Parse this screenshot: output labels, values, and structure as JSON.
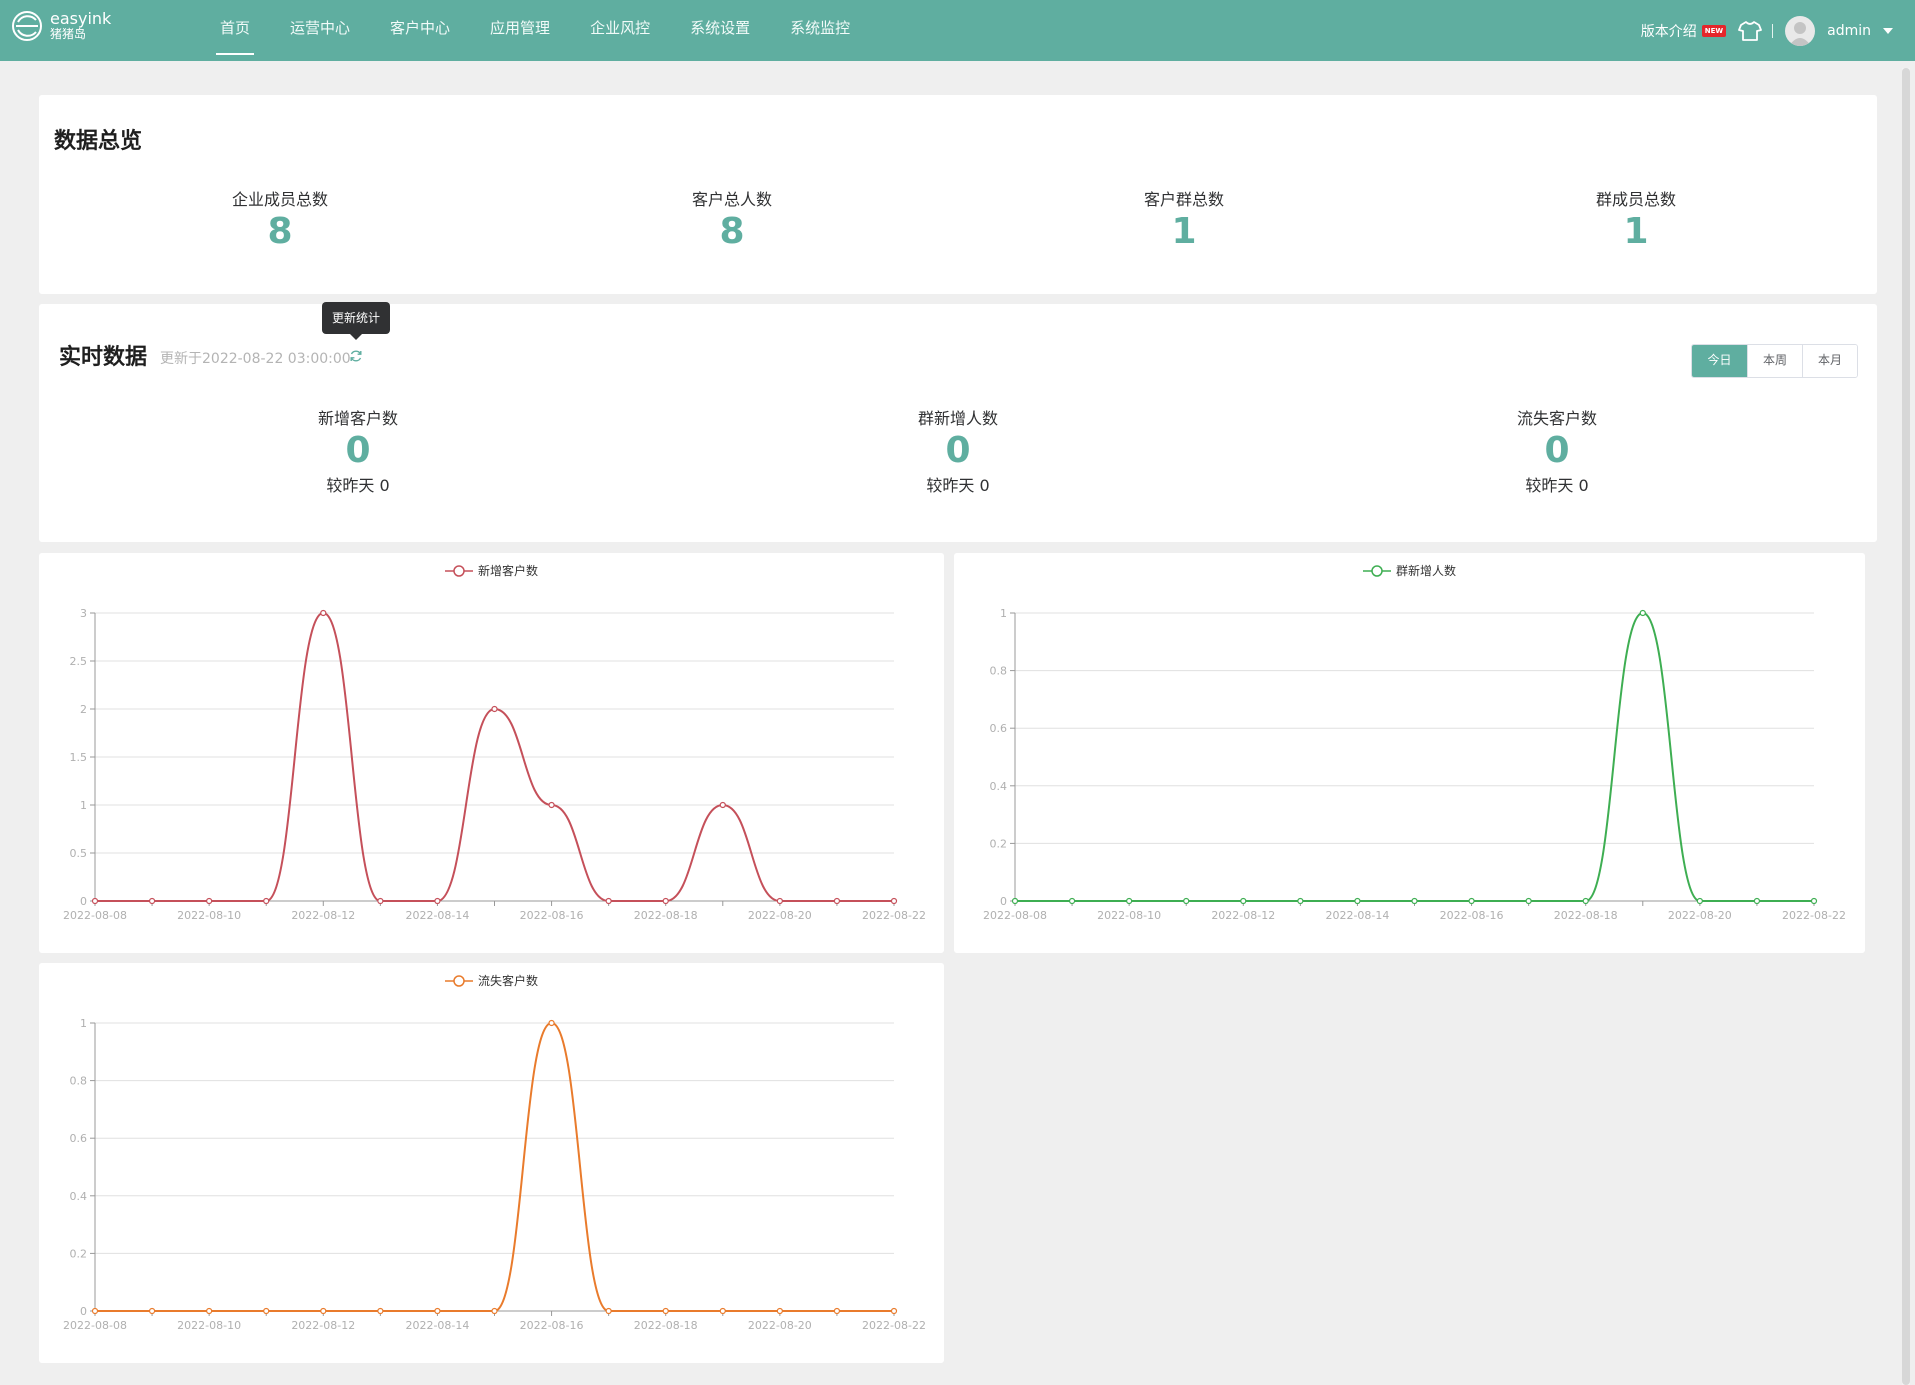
{
  "header": {
    "logo_name": "easyink",
    "logo_sub": "猪猪岛",
    "nav": [
      {
        "label": "首页",
        "active": true
      },
      {
        "label": "运营中心"
      },
      {
        "label": "客户中心"
      },
      {
        "label": "应用管理"
      },
      {
        "label": "企业风控"
      },
      {
        "label": "系统设置"
      },
      {
        "label": "系统监控"
      }
    ],
    "version_label": "版本介绍",
    "new_badge": "NEW",
    "username": "admin"
  },
  "overview": {
    "title": "数据总览",
    "stats": [
      {
        "label": "企业成员总数",
        "value": "8"
      },
      {
        "label": "客户总人数",
        "value": "8"
      },
      {
        "label": "客户群总数",
        "value": "1"
      },
      {
        "label": "群成员总数",
        "value": "1"
      }
    ]
  },
  "realtime": {
    "title": "实时数据",
    "updated": "更新于2022-08-22 03:00:00",
    "tooltip": "更新统计",
    "periods": [
      "今日",
      "本周",
      "本月"
    ],
    "active_period": "今日",
    "stats": [
      {
        "label": "新增客户数",
        "value": "0",
        "compare": "较昨天 0"
      },
      {
        "label": "群新增人数",
        "value": "0",
        "compare": "较昨天 0"
      },
      {
        "label": "流失客户数",
        "value": "0",
        "compare": "较昨天 0"
      }
    ]
  },
  "colors": {
    "accent": "#5faea0",
    "series_new_customers": "#c5505a",
    "series_group_new": "#3eae52",
    "series_lost": "#e97b2c"
  },
  "chart_data": [
    {
      "type": "line",
      "legend": "新增客户数",
      "x": [
        "2022-08-08",
        "2022-08-09",
        "2022-08-10",
        "2022-08-11",
        "2022-08-12",
        "2022-08-13",
        "2022-08-14",
        "2022-08-15",
        "2022-08-16",
        "2022-08-17",
        "2022-08-18",
        "2022-08-19",
        "2022-08-20",
        "2022-08-21",
        "2022-08-22"
      ],
      "x_tick_labels": [
        "2022-08-08",
        "2022-08-10",
        "2022-08-12",
        "2022-08-14",
        "2022-08-16",
        "2022-08-18",
        "2022-08-20",
        "2022-08-22"
      ],
      "values": [
        0,
        0,
        0,
        0,
        3,
        0,
        0,
        2,
        1,
        0,
        0,
        1,
        0,
        0,
        0
      ],
      "y_ticks": [
        "0",
        "0.5",
        "1",
        "1.5",
        "2",
        "2.5",
        "3"
      ],
      "ylim": [
        0,
        3
      ],
      "grid": true,
      "legend_position": "top-center"
    },
    {
      "type": "line",
      "legend": "群新增人数",
      "x": [
        "2022-08-08",
        "2022-08-09",
        "2022-08-10",
        "2022-08-11",
        "2022-08-12",
        "2022-08-13",
        "2022-08-14",
        "2022-08-15",
        "2022-08-16",
        "2022-08-17",
        "2022-08-18",
        "2022-08-19",
        "2022-08-20",
        "2022-08-21",
        "2022-08-22"
      ],
      "x_tick_labels": [
        "2022-08-08",
        "2022-08-10",
        "2022-08-12",
        "2022-08-14",
        "2022-08-16",
        "2022-08-18",
        "2022-08-20",
        "2022-08-22"
      ],
      "values": [
        0,
        0,
        0,
        0,
        0,
        0,
        0,
        0,
        0,
        0,
        0,
        1,
        0,
        0,
        0
      ],
      "y_ticks": [
        "0",
        "0.2",
        "0.4",
        "0.6",
        "0.8",
        "1"
      ],
      "ylim": [
        0,
        1
      ],
      "grid": true,
      "legend_position": "top-center"
    },
    {
      "type": "line",
      "legend": "流失客户数",
      "x": [
        "2022-08-08",
        "2022-08-09",
        "2022-08-10",
        "2022-08-11",
        "2022-08-12",
        "2022-08-13",
        "2022-08-14",
        "2022-08-15",
        "2022-08-16",
        "2022-08-17",
        "2022-08-18",
        "2022-08-19",
        "2022-08-20",
        "2022-08-21",
        "2022-08-22"
      ],
      "x_tick_labels": [
        "2022-08-08",
        "2022-08-10",
        "2022-08-12",
        "2022-08-14",
        "2022-08-16",
        "2022-08-18",
        "2022-08-20",
        "2022-08-22"
      ],
      "values": [
        0,
        0,
        0,
        0,
        0,
        0,
        0,
        0,
        1,
        0,
        0,
        0,
        0,
        0,
        0
      ],
      "y_ticks": [
        "0",
        "0.2",
        "0.4",
        "0.6",
        "0.8",
        "1"
      ],
      "ylim": [
        0,
        1
      ],
      "grid": true,
      "legend_position": "top-center"
    }
  ]
}
